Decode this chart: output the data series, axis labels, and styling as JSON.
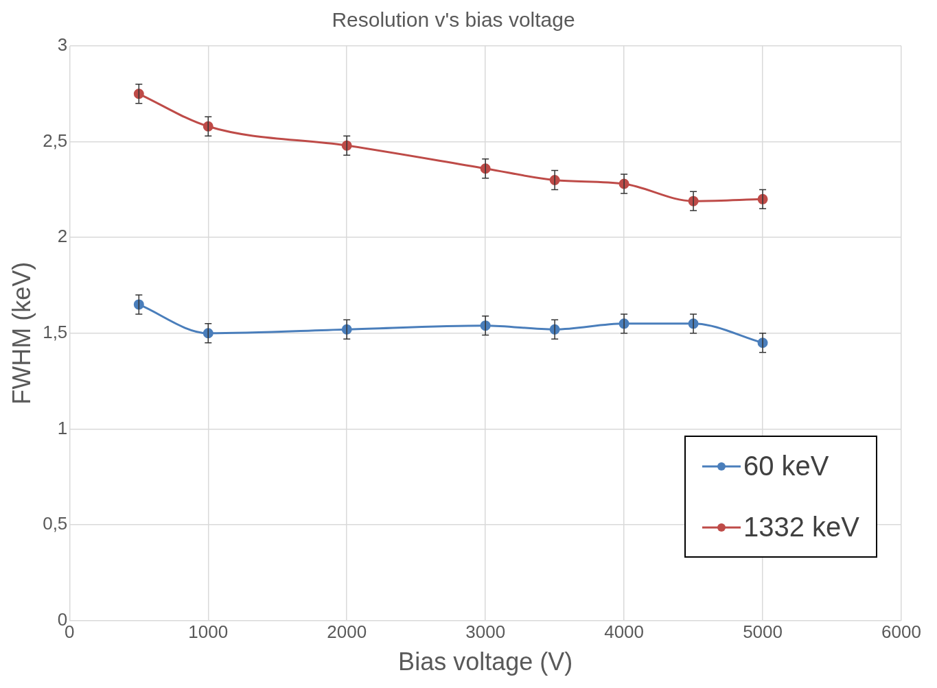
{
  "chart_data": {
    "type": "line",
    "title": "Resolution v's bias voltage",
    "xlabel": "Bias voltage (V)",
    "ylabel": "FWHM (keV)",
    "x": [
      500,
      1000,
      2000,
      3000,
      3500,
      4000,
      4500,
      5000
    ],
    "series": [
      {
        "name": "60 keV",
        "color": "#4a7ebb",
        "values": [
          1.65,
          1.5,
          1.52,
          1.54,
          1.52,
          1.55,
          1.55,
          1.45
        ],
        "errors": [
          0.05,
          0.05,
          0.05,
          0.05,
          0.05,
          0.05,
          0.05,
          0.05
        ]
      },
      {
        "name": "1332 keV",
        "color": "#be4b48",
        "values": [
          2.75,
          2.58,
          2.48,
          2.36,
          2.3,
          2.28,
          2.19,
          2.2
        ],
        "errors": [
          0.05,
          0.05,
          0.05,
          0.05,
          0.05,
          0.05,
          0.05,
          0.05
        ]
      }
    ],
    "xlim": [
      0,
      6000
    ],
    "xticks": [
      0,
      1000,
      2000,
      3000,
      4000,
      5000,
      6000
    ],
    "ylim": [
      0,
      3
    ],
    "yticks": [
      0,
      {
        "value": 0.5,
        "label": "0,5"
      },
      1,
      {
        "value": 1.5,
        "label": "1,5"
      },
      2,
      {
        "value": 2.5,
        "label": "2,5"
      },
      3
    ],
    "grid": true,
    "legend": "bottom right",
    "marker": "circle",
    "line_style": "solid"
  }
}
